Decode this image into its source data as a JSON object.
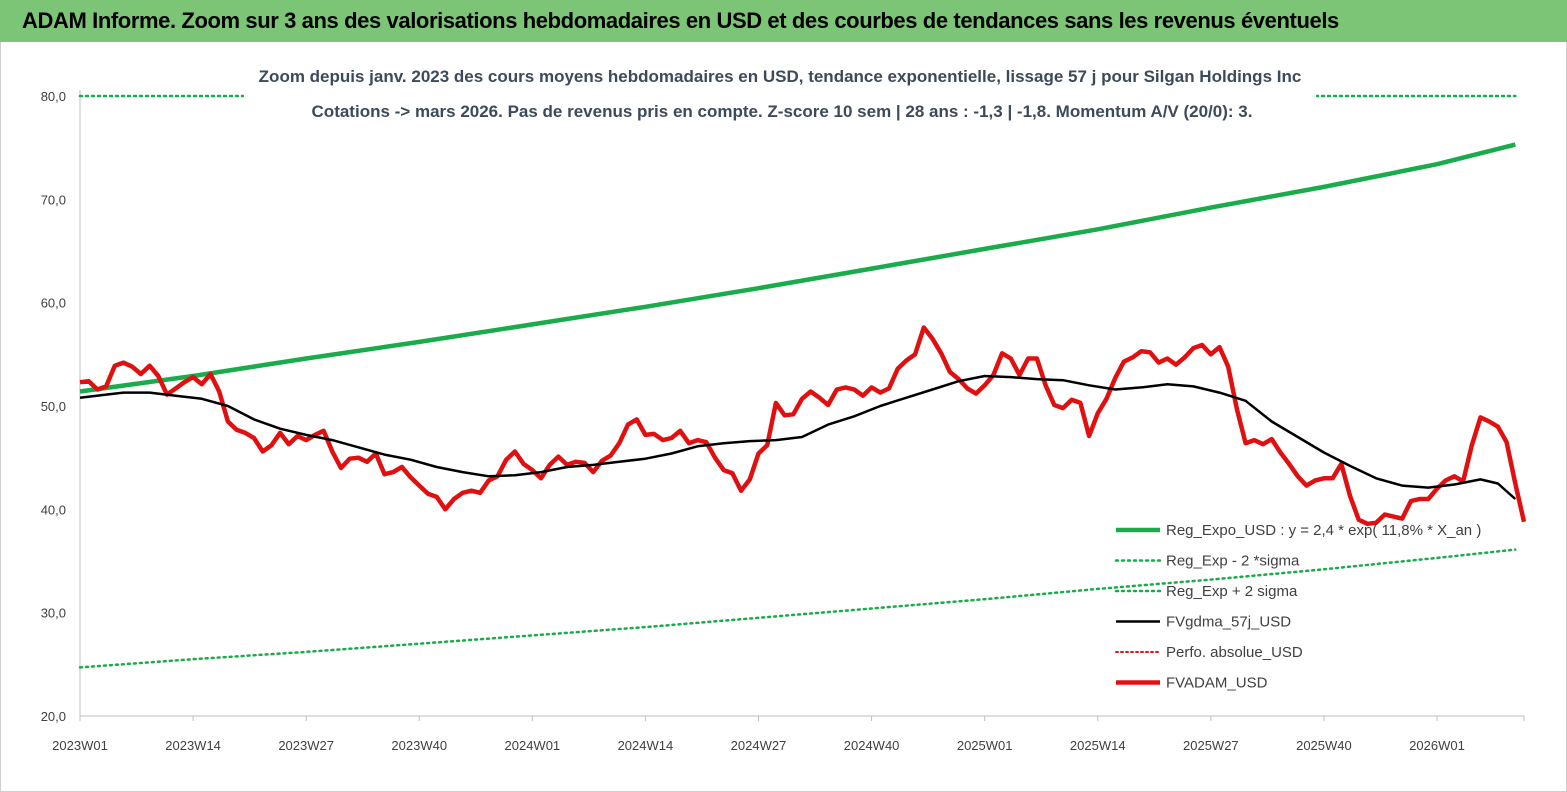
{
  "banner": {
    "title": "ADAM Informe. Zoom sur 3 ans des valorisations hebdomadaires en USD et des courbes de tendances sans les revenus éventuels"
  },
  "chart_data": {
    "type": "line",
    "title": "Zoom depuis janv. 2023 des cours moyens hebdomadaires en USD, tendance exponentielle, lissage 57 j pour Silgan Holdings Inc",
    "subtitle": "Cotations -> mars 2026. Pas de revenus pris en  compte. Z-score 10 sem  | 28 ans : -1,3 | -1,8. Momentum A/V (20/0): 3.",
    "xlabel": "",
    "ylabel": "",
    "ylim": [
      20,
      80
    ],
    "yticks": [
      "20,0",
      "30,0",
      "40,0",
      "50,0",
      "60,0",
      "70,0",
      "80,0"
    ],
    "xticks": [
      "2023W01",
      "2023W14",
      "2023W27",
      "2023W40",
      "2024W01",
      "2024W14",
      "2024W27",
      "2024W40",
      "2025W01",
      "2025W14",
      "2025W27",
      "2025W40",
      "2026W01"
    ],
    "grid": false,
    "legend_position": "bottom-right",
    "colors": {
      "trend": "#1aab4b",
      "band": "#1aab4b",
      "smooth": "#000000",
      "perf": "#d62020",
      "price": "#e01010"
    },
    "series": [
      {
        "name": "Reg_Expo_USD : y = 2,4  * exp( 11,8% *  X_an )",
        "style": "solid-thick",
        "points": [
          [
            0,
            51.4
          ],
          [
            13,
            52.9
          ],
          [
            26,
            54.6
          ],
          [
            39,
            56.2
          ],
          [
            52,
            57.9
          ],
          [
            65,
            59.6
          ],
          [
            78,
            61.4
          ],
          [
            91,
            63.3
          ],
          [
            104,
            65.2
          ],
          [
            117,
            67.1
          ],
          [
            130,
            69.2
          ],
          [
            143,
            71.2
          ],
          [
            156,
            73.4
          ],
          [
            165,
            75.3
          ]
        ]
      },
      {
        "name": "Reg_Exp - 2 *sigma",
        "style": "dotted",
        "points": [
          [
            0,
            24.7
          ],
          [
            13,
            25.5
          ],
          [
            26,
            26.2
          ],
          [
            39,
            27.0
          ],
          [
            52,
            27.8
          ],
          [
            65,
            28.6
          ],
          [
            78,
            29.5
          ],
          [
            91,
            30.4
          ],
          [
            104,
            31.3
          ],
          [
            117,
            32.3
          ],
          [
            130,
            33.2
          ],
          [
            143,
            34.2
          ],
          [
            156,
            35.3
          ],
          [
            165,
            36.1
          ]
        ]
      },
      {
        "name": "Reg_Exp + 2 sigma",
        "style": "dotted",
        "points": [
          [
            0,
            80.0
          ],
          [
            165,
            80.0
          ]
        ]
      },
      {
        "name": "FVgdma_57j_USD",
        "style": "solid",
        "points": [
          [
            0,
            50.8
          ],
          [
            3,
            51.1
          ],
          [
            5,
            51.3
          ],
          [
            8,
            51.3
          ],
          [
            11,
            51.0
          ],
          [
            14,
            50.7
          ],
          [
            17,
            50.0
          ],
          [
            20,
            48.7
          ],
          [
            23,
            47.8
          ],
          [
            26,
            47.2
          ],
          [
            29,
            46.7
          ],
          [
            32,
            46.0
          ],
          [
            35,
            45.3
          ],
          [
            38,
            44.8
          ],
          [
            41,
            44.1
          ],
          [
            44,
            43.6
          ],
          [
            47,
            43.2
          ],
          [
            50,
            43.3
          ],
          [
            53,
            43.6
          ],
          [
            56,
            44.1
          ],
          [
            59,
            44.3
          ],
          [
            62,
            44.6
          ],
          [
            65,
            44.9
          ],
          [
            68,
            45.4
          ],
          [
            71,
            46.1
          ],
          [
            74,
            46.4
          ],
          [
            77,
            46.6
          ],
          [
            80,
            46.7
          ],
          [
            83,
            47.0
          ],
          [
            86,
            48.2
          ],
          [
            89,
            49.0
          ],
          [
            92,
            50.0
          ],
          [
            95,
            50.8
          ],
          [
            98,
            51.6
          ],
          [
            101,
            52.4
          ],
          [
            104,
            52.9
          ],
          [
            107,
            52.8
          ],
          [
            110,
            52.6
          ],
          [
            113,
            52.5
          ],
          [
            116,
            52.0
          ],
          [
            119,
            51.6
          ],
          [
            122,
            51.8
          ],
          [
            125,
            52.1
          ],
          [
            128,
            51.9
          ],
          [
            131,
            51.3
          ],
          [
            134,
            50.5
          ],
          [
            137,
            48.5
          ],
          [
            140,
            47.0
          ],
          [
            143,
            45.5
          ],
          [
            146,
            44.2
          ],
          [
            149,
            43.0
          ],
          [
            152,
            42.3
          ],
          [
            155,
            42.1
          ],
          [
            158,
            42.4
          ],
          [
            161,
            42.9
          ],
          [
            163,
            42.5
          ],
          [
            165,
            41.0
          ]
        ]
      },
      {
        "name": "Perfo. absolue_USD",
        "style": "dotted-red",
        "points": []
      },
      {
        "name": "FVADAM_USD",
        "style": "solid-thick",
        "points": [
          [
            0,
            52.3
          ],
          [
            1,
            52.4
          ],
          [
            2,
            51.6
          ],
          [
            3,
            51.9
          ],
          [
            4,
            53.9
          ],
          [
            5,
            54.2
          ],
          [
            6,
            53.8
          ],
          [
            7,
            53.1
          ],
          [
            8,
            53.9
          ],
          [
            9,
            52.9
          ],
          [
            10,
            51.1
          ],
          [
            11,
            51.7
          ],
          [
            12,
            52.3
          ],
          [
            13,
            52.8
          ],
          [
            14,
            52.1
          ],
          [
            15,
            53.1
          ],
          [
            16,
            51.4
          ],
          [
            17,
            48.5
          ],
          [
            18,
            47.7
          ],
          [
            19,
            47.4
          ],
          [
            20,
            46.9
          ],
          [
            21,
            45.6
          ],
          [
            22,
            46.2
          ],
          [
            23,
            47.4
          ],
          [
            24,
            46.3
          ],
          [
            25,
            47.1
          ],
          [
            26,
            46.7
          ],
          [
            27,
            47.2
          ],
          [
            28,
            47.6
          ],
          [
            29,
            45.6
          ],
          [
            30,
            44.0
          ],
          [
            31,
            44.9
          ],
          [
            32,
            45.0
          ],
          [
            33,
            44.6
          ],
          [
            34,
            45.4
          ],
          [
            35,
            43.4
          ],
          [
            36,
            43.6
          ],
          [
            37,
            44.1
          ],
          [
            38,
            43.1
          ],
          [
            39,
            42.3
          ],
          [
            40,
            41.5
          ],
          [
            41,
            41.2
          ],
          [
            42,
            40.0
          ],
          [
            43,
            41.0
          ],
          [
            44,
            41.6
          ],
          [
            45,
            41.8
          ],
          [
            46,
            41.6
          ],
          [
            47,
            42.8
          ],
          [
            48,
            43.2
          ],
          [
            49,
            44.8
          ],
          [
            50,
            45.6
          ],
          [
            51,
            44.4
          ],
          [
            52,
            43.8
          ],
          [
            53,
            43.0
          ],
          [
            54,
            44.3
          ],
          [
            55,
            45.1
          ],
          [
            56,
            44.3
          ],
          [
            57,
            44.6
          ],
          [
            58,
            44.5
          ],
          [
            59,
            43.6
          ],
          [
            60,
            44.7
          ],
          [
            61,
            45.2
          ],
          [
            62,
            46.4
          ],
          [
            63,
            48.2
          ],
          [
            64,
            48.7
          ],
          [
            65,
            47.2
          ],
          [
            66,
            47.3
          ],
          [
            67,
            46.7
          ],
          [
            68,
            46.9
          ],
          [
            69,
            47.6
          ],
          [
            70,
            46.4
          ],
          [
            71,
            46.7
          ],
          [
            72,
            46.5
          ],
          [
            73,
            45.0
          ],
          [
            74,
            43.8
          ],
          [
            75,
            43.5
          ],
          [
            76,
            41.8
          ],
          [
            77,
            42.9
          ],
          [
            78,
            45.4
          ],
          [
            79,
            46.2
          ],
          [
            80,
            50.3
          ],
          [
            81,
            49.1
          ],
          [
            82,
            49.2
          ],
          [
            83,
            50.7
          ],
          [
            84,
            51.4
          ],
          [
            85,
            50.8
          ],
          [
            86,
            50.1
          ],
          [
            87,
            51.6
          ],
          [
            88,
            51.8
          ],
          [
            89,
            51.6
          ],
          [
            90,
            51.0
          ],
          [
            91,
            51.8
          ],
          [
            92,
            51.3
          ],
          [
            93,
            51.7
          ],
          [
            94,
            53.6
          ],
          [
            95,
            54.4
          ],
          [
            96,
            55.0
          ],
          [
            97,
            57.6
          ],
          [
            98,
            56.5
          ],
          [
            99,
            55.1
          ],
          [
            100,
            53.3
          ],
          [
            101,
            52.6
          ],
          [
            102,
            51.7
          ],
          [
            103,
            51.2
          ],
          [
            104,
            52.0
          ],
          [
            105,
            53.0
          ],
          [
            106,
            55.1
          ],
          [
            107,
            54.6
          ],
          [
            108,
            53.0
          ],
          [
            109,
            54.6
          ],
          [
            110,
            54.6
          ],
          [
            111,
            52.0
          ],
          [
            112,
            50.1
          ],
          [
            113,
            49.8
          ],
          [
            114,
            50.6
          ],
          [
            115,
            50.3
          ],
          [
            116,
            47.1
          ],
          [
            117,
            49.3
          ],
          [
            118,
            50.7
          ],
          [
            119,
            52.7
          ],
          [
            120,
            54.3
          ],
          [
            121,
            54.7
          ],
          [
            122,
            55.3
          ],
          [
            123,
            55.2
          ],
          [
            124,
            54.2
          ],
          [
            125,
            54.6
          ],
          [
            126,
            54.0
          ],
          [
            127,
            54.7
          ],
          [
            128,
            55.6
          ],
          [
            129,
            55.9
          ],
          [
            130,
            55.0
          ],
          [
            131,
            55.7
          ],
          [
            132,
            53.8
          ],
          [
            133,
            49.7
          ],
          [
            134,
            46.4
          ],
          [
            135,
            46.7
          ],
          [
            136,
            46.3
          ],
          [
            137,
            46.8
          ],
          [
            138,
            45.5
          ],
          [
            139,
            44.4
          ],
          [
            140,
            43.2
          ],
          [
            141,
            42.3
          ],
          [
            142,
            42.8
          ],
          [
            143,
            43.0
          ],
          [
            144,
            43.0
          ],
          [
            145,
            44.4
          ],
          [
            146,
            41.3
          ],
          [
            147,
            39.0
          ],
          [
            148,
            38.6
          ],
          [
            149,
            38.7
          ],
          [
            150,
            39.5
          ],
          [
            151,
            39.3
          ],
          [
            152,
            39.1
          ],
          [
            153,
            40.8
          ],
          [
            154,
            41.0
          ],
          [
            155,
            41.0
          ],
          [
            156,
            42.0
          ],
          [
            157,
            42.8
          ],
          [
            158,
            43.2
          ],
          [
            159,
            42.7
          ],
          [
            160,
            46.2
          ],
          [
            161,
            48.9
          ],
          [
            162,
            48.5
          ],
          [
            163,
            48.0
          ],
          [
            164,
            46.5
          ],
          [
            165,
            42.5
          ],
          [
            166,
            38.8
          ]
        ]
      }
    ]
  }
}
